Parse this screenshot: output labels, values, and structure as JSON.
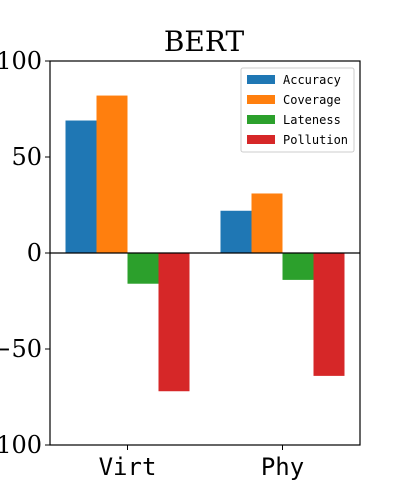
{
  "chart_data": {
    "type": "bar",
    "title": "BERT",
    "xlabel": "",
    "ylabel": "",
    "categories": [
      "Virt",
      "Phy"
    ],
    "ylim": [
      -100,
      100
    ],
    "yticks": [
      100,
      50,
      0,
      -50,
      -100
    ],
    "ytick_labels": [
      "100",
      "50",
      "0",
      "−50",
      "−100"
    ],
    "grid": false,
    "legend_position": "top-right",
    "series": [
      {
        "name": "Accuracy",
        "color": "#1f77b4",
        "values": [
          69,
          22
        ]
      },
      {
        "name": "Coverage",
        "color": "#ff7f0e",
        "values": [
          82,
          31
        ]
      },
      {
        "name": "Lateness",
        "color": "#2ca02c",
        "values": [
          -16,
          -14
        ]
      },
      {
        "name": "Pollution",
        "color": "#d62728",
        "values": [
          -72,
          -64
        ]
      }
    ]
  }
}
